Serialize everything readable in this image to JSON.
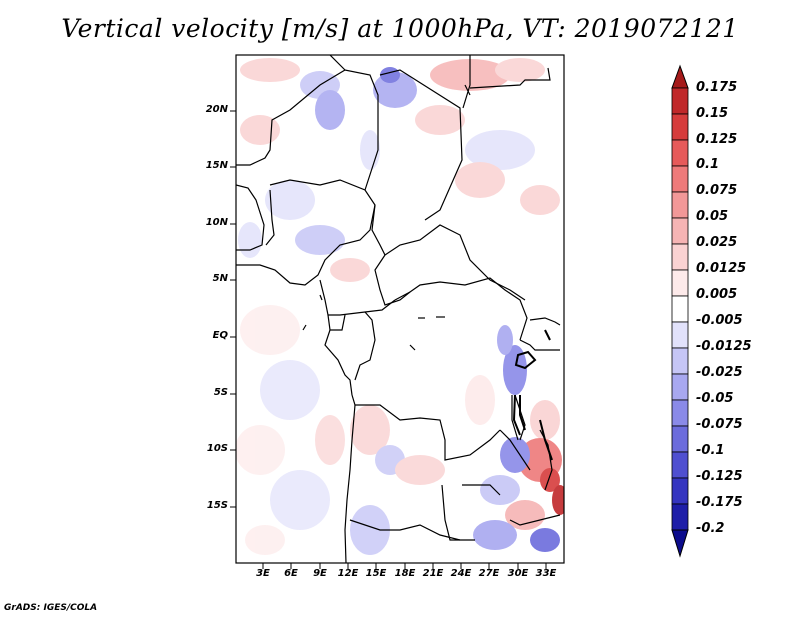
{
  "title": "Vertical velocity [m/s] at 1000hPa, VT: 2019072121",
  "map": {
    "lat_labels": [
      "20N",
      "15N",
      "10N",
      "5N",
      "EQ",
      "5S",
      "10S",
      "15S"
    ],
    "lon_labels": [
      "3E",
      "6E",
      "9E",
      "12E",
      "15E",
      "18E",
      "21E",
      "24E",
      "27E",
      "30E",
      "33E"
    ]
  },
  "colorbar": {
    "labels": [
      "0.175",
      "0.15",
      "0.125",
      "0.1",
      "0.075",
      "0.05",
      "0.025",
      "0.0125",
      "0.005",
      "-0.005",
      "-0.0125",
      "-0.025",
      "-0.05",
      "-0.075",
      "-0.1",
      "-0.125",
      "-0.175",
      "-0.2"
    ],
    "colors": [
      "#a51a1a",
      "#c0282a",
      "#d63c3c",
      "#e65a5a",
      "#ee7a7a",
      "#f29898",
      "#f6b4b4",
      "#fad2d2",
      "#fdeaea",
      "#ffffff",
      "#e2e2fb",
      "#c6c6f6",
      "#a8a8f0",
      "#8a8ae8",
      "#6c6cdc",
      "#4f4fd0",
      "#3535c0",
      "#1e1ea8",
      "#0c0c8c"
    ]
  },
  "credit": "GrADS: IGES/COLA"
}
